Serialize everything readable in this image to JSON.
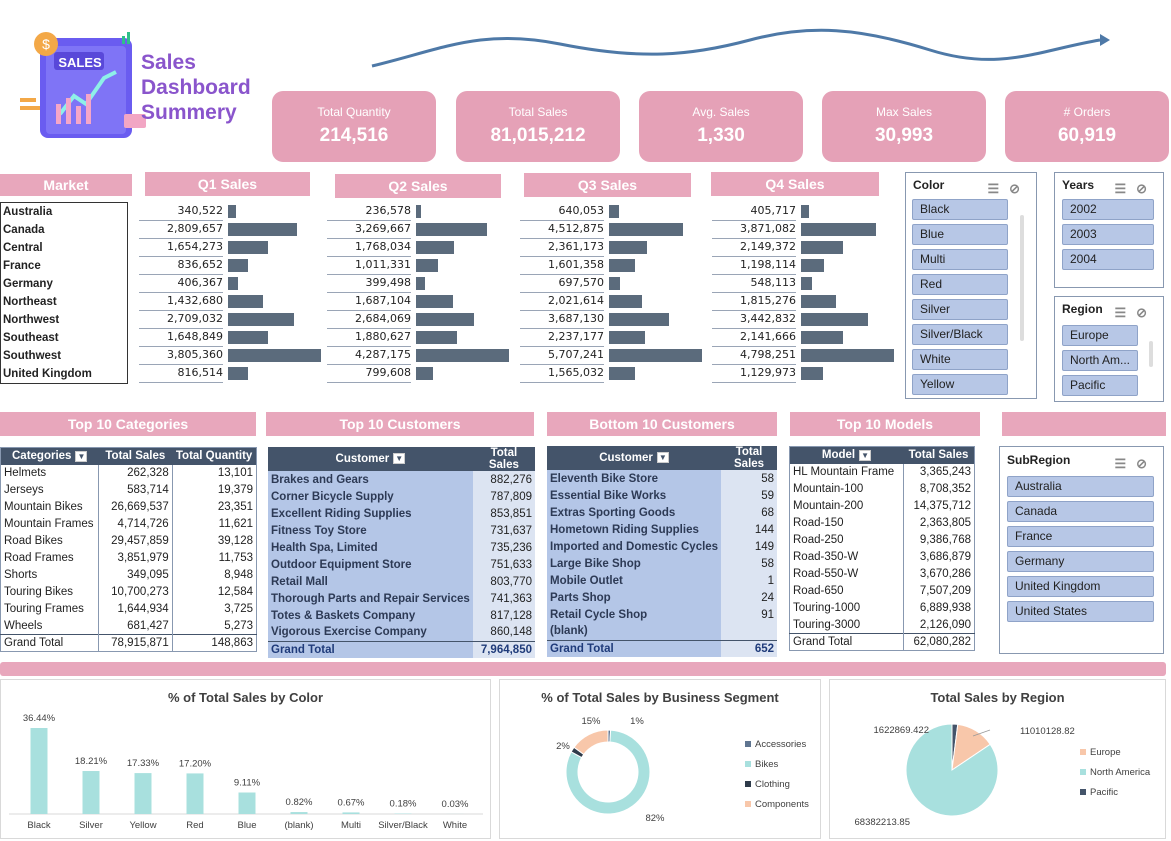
{
  "header": {
    "title_line1": "Sales",
    "title_line2": "Dashboard",
    "title_line3": "Summery",
    "logo_text": "SALES"
  },
  "kpis": [
    {
      "label": "Total Quantity",
      "value": "214,516"
    },
    {
      "label": "Total Sales",
      "value": "81,015,212"
    },
    {
      "label": "Avg. Sales",
      "value": "1,330"
    },
    {
      "label": "Max Sales",
      "value": "30,993"
    },
    {
      "label": "# Orders",
      "value": "60,919"
    }
  ],
  "market_section": {
    "market_header": "Market",
    "quarter_headers": [
      "Q1 Sales",
      "Q2 Sales",
      "Q3 Sales",
      "Q4 Sales"
    ],
    "markets": [
      "Australia",
      "Canada",
      "Central",
      "France",
      "Germany",
      "Northeast",
      "Northwest",
      "Southeast",
      "Southwest",
      "United Kingdom"
    ],
    "q1": [
      "340,522",
      "2,809,657",
      "1,654,273",
      "836,652",
      "406,367",
      "1,432,680",
      "2,709,032",
      "1,648,849",
      "3,805,360",
      "816,514"
    ],
    "q2": [
      "236,578",
      "3,269,667",
      "1,768,034",
      "1,011,331",
      "399,498",
      "1,687,104",
      "2,684,069",
      "1,880,627",
      "4,287,175",
      "799,608"
    ],
    "q3": [
      "640,053",
      "4,512,875",
      "2,361,173",
      "1,601,358",
      "697,570",
      "2,021,614",
      "3,687,130",
      "2,237,177",
      "5,707,241",
      "1,565,032"
    ],
    "q4": [
      "405,717",
      "3,871,082",
      "2,149,372",
      "1,198,114",
      "548,113",
      "1,815,276",
      "3,442,832",
      "2,141,666",
      "4,798,251",
      "1,129,973"
    ]
  },
  "slicers": {
    "color": {
      "title": "Color",
      "items": [
        "Black",
        "Blue",
        "Multi",
        "Red",
        "Silver",
        "Silver/Black",
        "White",
        "Yellow"
      ]
    },
    "years": {
      "title": "Years",
      "items": [
        "2002",
        "2003",
        "2004"
      ]
    },
    "region": {
      "title": "Region",
      "items": [
        "Europe",
        "North Am...",
        "Pacific"
      ]
    },
    "subregion": {
      "title": "SubRegion",
      "items": [
        "Australia",
        "Canada",
        "France",
        "Germany",
        "United Kingdom",
        "United States"
      ]
    }
  },
  "section_headers": {
    "categories": "Top 10 Categories",
    "customers": "Top 10 Customers",
    "bottom_customers": "Bottom 10 Customers",
    "models": "Top 10 Models"
  },
  "categories_table": {
    "headers": [
      "Categories",
      "Total Sales",
      "Total Quantity"
    ],
    "rows": [
      [
        "Helmets",
        "262,328",
        "13,101"
      ],
      [
        "Jerseys",
        "583,714",
        "19,379"
      ],
      [
        "Mountain Bikes",
        "26,669,537",
        "23,351"
      ],
      [
        "Mountain Frames",
        "4,714,726",
        "11,621"
      ],
      [
        "Road Bikes",
        "29,457,859",
        "39,128"
      ],
      [
        "Road Frames",
        "3,851,979",
        "11,753"
      ],
      [
        "Shorts",
        "349,095",
        "8,948"
      ],
      [
        "Touring Bikes",
        "10,700,273",
        "12,584"
      ],
      [
        "Touring Frames",
        "1,644,934",
        "3,725"
      ],
      [
        "Wheels",
        "681,427",
        "5,273"
      ]
    ],
    "total": [
      "Grand Total",
      "78,915,871",
      "148,863"
    ]
  },
  "customers_table": {
    "headers": [
      "Customer",
      "Total Sales"
    ],
    "rows": [
      [
        "Brakes and Gears",
        "882,276"
      ],
      [
        "Corner Bicycle Supply",
        "787,809"
      ],
      [
        "Excellent Riding Supplies",
        "853,851"
      ],
      [
        "Fitness Toy Store",
        "731,637"
      ],
      [
        "Health Spa, Limited",
        "735,236"
      ],
      [
        "Outdoor Equipment Store",
        "751,633"
      ],
      [
        "Retail Mall",
        "803,770"
      ],
      [
        "Thorough Parts and Repair Services",
        "741,363"
      ],
      [
        "Totes & Baskets Company",
        "817,128"
      ],
      [
        "Vigorous Exercise Company",
        "860,148"
      ]
    ],
    "total": [
      "Grand Total",
      "7,964,850"
    ]
  },
  "bottom_customers_table": {
    "headers": [
      "Customer",
      "Total Sales"
    ],
    "rows": [
      [
        "Eleventh Bike Store",
        "58"
      ],
      [
        "Essential Bike Works",
        "59"
      ],
      [
        "Extras Sporting Goods",
        "68"
      ],
      [
        "Hometown Riding Supplies",
        "144"
      ],
      [
        "Imported and Domestic Cycles",
        "149"
      ],
      [
        "Large Bike Shop",
        "58"
      ],
      [
        "Mobile Outlet",
        "1"
      ],
      [
        "Parts Shop",
        "24"
      ],
      [
        "Retail Cycle Shop",
        "91"
      ],
      [
        "(blank)",
        ""
      ]
    ],
    "total": [
      "Grand Total",
      "652"
    ]
  },
  "models_table": {
    "headers": [
      "Model",
      "Total Sales"
    ],
    "rows": [
      [
        "HL Mountain Frame",
        "3,365,243"
      ],
      [
        "Mountain-100",
        "8,708,352"
      ],
      [
        "Mountain-200",
        "14,375,712"
      ],
      [
        "Road-150",
        "2,363,805"
      ],
      [
        "Road-250",
        "9,386,768"
      ],
      [
        "Road-350-W",
        "3,686,879"
      ],
      [
        "Road-550-W",
        "3,670,286"
      ],
      [
        "Road-650",
        "7,507,209"
      ],
      [
        "Touring-1000",
        "6,889,938"
      ],
      [
        "Touring-3000",
        "2,126,090"
      ]
    ],
    "total": [
      "Grand Total",
      "62,080,282"
    ]
  },
  "chart_data": [
    {
      "type": "bar",
      "title": "% of Total Sales by Color",
      "categories": [
        "Black",
        "Silver",
        "Yellow",
        "Red",
        "Blue",
        "(blank)",
        "Multi",
        "Silver/Black",
        "White"
      ],
      "values": [
        36.44,
        18.21,
        17.33,
        17.2,
        9.11,
        0.82,
        0.67,
        0.18,
        0.03
      ],
      "labels": [
        "36.44%",
        "18.21%",
        "17.33%",
        "17.20%",
        "9.11%",
        "0.82%",
        "0.67%",
        "0.18%",
        "0.03%"
      ],
      "color": "#a8e0de",
      "grid": false
    },
    {
      "type": "pie",
      "subtype": "doughnut",
      "title": "% of Total Sales by Business Segment",
      "categories": [
        "Accessories",
        "Bikes",
        "Clothing",
        "Components"
      ],
      "values": [
        1,
        82,
        2,
        15
      ],
      "labels": [
        "1%",
        "82%",
        "2%",
        "15%"
      ],
      "colors": [
        "#5f7590",
        "#a8e0de",
        "#2e3b4a",
        "#f8c7aa"
      ],
      "legend": "right"
    },
    {
      "type": "pie",
      "title": "Total Sales by Region",
      "categories": [
        "Europe",
        "North America",
        "Pacific"
      ],
      "values": [
        11010128.82,
        68382213.85,
        1622869.422
      ],
      "labels": [
        "11010128.82",
        "68382213.85",
        "1622869.422"
      ],
      "colors": [
        "#f8c7aa",
        "#a8e0de",
        "#44546a"
      ],
      "legend": "right"
    }
  ],
  "colors": {
    "pink": "#e5a1b7",
    "bar_dark": "#5b6b7c",
    "table_header": "#44546a",
    "slicer_item": "#b7c7e6",
    "title_purple": "#8a55cc"
  }
}
